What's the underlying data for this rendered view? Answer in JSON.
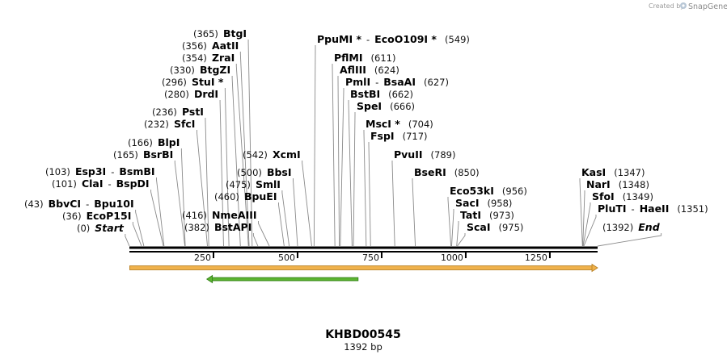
{
  "credit": {
    "prefix": "Created by",
    "brand": "SnapGene"
  },
  "map": {
    "title": "KHBD00545",
    "length_label": "1392 bp",
    "length_bp": 1392,
    "ticks": [
      250,
      500,
      750,
      1000,
      1250
    ],
    "features": [
      {
        "name": "orange-feature",
        "start": 1,
        "end": 1392,
        "direction": "forward",
        "color": "#f0b24c"
      },
      {
        "name": "green-feature",
        "start": 230,
        "end": 680,
        "direction": "reverse",
        "color": "#5cb531"
      }
    ],
    "sites": [
      {
        "pos": 0,
        "label": "(0)",
        "names": [
          "Start"
        ],
        "italic": true
      },
      {
        "pos": 36,
        "label": "(36)",
        "names": [
          "EcoP15I"
        ]
      },
      {
        "pos": 43,
        "label": "(43)",
        "names": [
          "BbvCI",
          "Bpu10I"
        ]
      },
      {
        "pos": 101,
        "label": "(101)",
        "names": [
          "ClaI",
          "BspDI"
        ]
      },
      {
        "pos": 103,
        "label": "(103)",
        "names": [
          "Esp3I",
          "BsmBI"
        ]
      },
      {
        "pos": 165,
        "label": "(165)",
        "names": [
          "BsrBI"
        ]
      },
      {
        "pos": 166,
        "label": "(166)",
        "names": [
          "BlpI"
        ]
      },
      {
        "pos": 232,
        "label": "(232)",
        "names": [
          "SfcI"
        ]
      },
      {
        "pos": 236,
        "label": "(236)",
        "names": [
          "PstI"
        ]
      },
      {
        "pos": 280,
        "label": "(280)",
        "names": [
          "DrdI"
        ]
      },
      {
        "pos": 296,
        "label": "(296)",
        "names": [
          "StuI *"
        ]
      },
      {
        "pos": 330,
        "label": "(330)",
        "names": [
          "BtgZI"
        ]
      },
      {
        "pos": 354,
        "label": "(354)",
        "names": [
          "ZraI"
        ]
      },
      {
        "pos": 356,
        "label": "(356)",
        "names": [
          "AatII"
        ]
      },
      {
        "pos": 365,
        "label": "(365)",
        "names": [
          "BtgI"
        ]
      },
      {
        "pos": 382,
        "label": "(382)",
        "names": [
          "BstAPI"
        ]
      },
      {
        "pos": 416,
        "label": "(416)",
        "names": [
          "NmeAIII"
        ]
      },
      {
        "pos": 460,
        "label": "(460)",
        "names": [
          "BpuEI"
        ]
      },
      {
        "pos": 475,
        "label": "(475)",
        "names": [
          "SmlI"
        ]
      },
      {
        "pos": 500,
        "label": "(500)",
        "names": [
          "BbsI"
        ]
      },
      {
        "pos": 542,
        "label": "(542)",
        "names": [
          "XcmI"
        ]
      },
      {
        "pos": 549,
        "label": "(549)",
        "names": [
          "PpuMI *",
          "EcoO109I *"
        ]
      },
      {
        "pos": 611,
        "label": "(611)",
        "names": [
          "PflMI"
        ]
      },
      {
        "pos": 624,
        "label": "(624)",
        "names": [
          "AflIII"
        ]
      },
      {
        "pos": 627,
        "label": "(627)",
        "names": [
          "PmlI",
          "BsaAI"
        ]
      },
      {
        "pos": 662,
        "label": "(662)",
        "names": [
          "BstBI"
        ]
      },
      {
        "pos": 666,
        "label": "(666)",
        "names": [
          "SpeI"
        ]
      },
      {
        "pos": 704,
        "label": "(704)",
        "names": [
          "MscI *"
        ]
      },
      {
        "pos": 717,
        "label": "(717)",
        "names": [
          "FspI"
        ]
      },
      {
        "pos": 789,
        "label": "(789)",
        "names": [
          "PvuII"
        ]
      },
      {
        "pos": 850,
        "label": "(850)",
        "names": [
          "BseRI"
        ]
      },
      {
        "pos": 956,
        "label": "(956)",
        "names": [
          "Eco53kI"
        ]
      },
      {
        "pos": 958,
        "label": "(958)",
        "names": [
          "SacI"
        ]
      },
      {
        "pos": 973,
        "label": "(973)",
        "names": [
          "TatI"
        ]
      },
      {
        "pos": 975,
        "label": "(975)",
        "names": [
          "ScaI"
        ]
      },
      {
        "pos": 1347,
        "label": "(1347)",
        "names": [
          "KasI"
        ]
      },
      {
        "pos": 1348,
        "label": "(1348)",
        "names": [
          "NarI"
        ]
      },
      {
        "pos": 1349,
        "label": "(1349)",
        "names": [
          "SfoI"
        ]
      },
      {
        "pos": 1351,
        "label": "(1351)",
        "names": [
          "PluTI",
          "HaeII"
        ]
      },
      {
        "pos": 1392,
        "label": "(1392)",
        "names": [
          "End"
        ],
        "italic": true
      }
    ]
  }
}
